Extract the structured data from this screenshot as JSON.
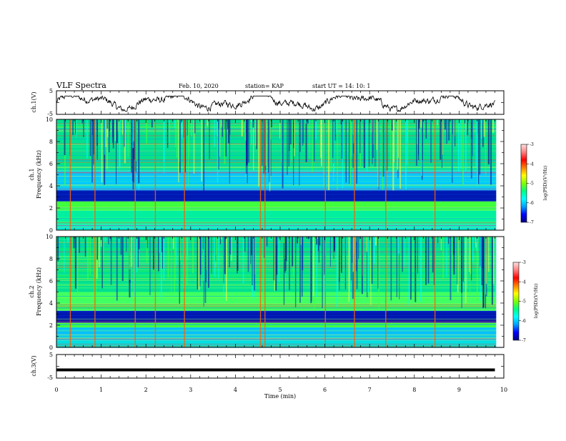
{
  "header": {
    "title": "VLF Spectra",
    "date": "Feb. 10, 2020",
    "station": "station= KAP",
    "start": "start  UT =   14: 10: 1"
  },
  "chart_data": [
    {
      "type": "line",
      "panel": "ch1-waveform",
      "ylabel": "ch.1(V)",
      "ylim": [
        -5,
        5
      ],
      "yticks": [
        "5",
        "-5"
      ],
      "xlim": [
        0,
        10
      ],
      "trace_range_min": [
        0,
        9.8
      ],
      "color": "#000000"
    },
    {
      "type": "heatmap",
      "panel": "ch1-spectrogram",
      "ylabel_top": "ch.1",
      "ylabel": "Frequency (kHz)",
      "ylim": [
        0,
        10
      ],
      "yticks": [
        "0",
        "2",
        "4",
        "6",
        "8",
        "10"
      ],
      "xlim": [
        0,
        10
      ],
      "bands_khz": [
        [
          0,
          0.5,
          "#00e0e0"
        ],
        [
          0.5,
          1.8,
          "#00f0a0"
        ],
        [
          1.8,
          2.6,
          "#40ff40"
        ],
        [
          2.6,
          3.6,
          "#0018b0"
        ],
        [
          3.6,
          5.4,
          "#00c8ff"
        ],
        [
          5.4,
          10,
          "#00e090"
        ]
      ],
      "strong_times_min": [
        0.3,
        0.85,
        1.75,
        2.2,
        2.85,
        4.55,
        4.65,
        6.0,
        6.65,
        7.35,
        8.45
      ]
    },
    {
      "type": "heatmap",
      "panel": "ch2-spectrogram",
      "ylabel_top": "ch.2",
      "ylabel": "Frequency (kHz)",
      "ylim": [
        0,
        10
      ],
      "yticks": [
        "0",
        "2",
        "4",
        "6",
        "8",
        "10"
      ],
      "xlim": [
        0,
        10
      ],
      "bands_khz": [
        [
          0,
          0.6,
          "#00e0e0"
        ],
        [
          0.6,
          1.8,
          "#00c0ff"
        ],
        [
          1.8,
          2.2,
          "#40ff40"
        ],
        [
          2.2,
          3.3,
          "#0018b0"
        ],
        [
          3.3,
          5.0,
          "#40ff60"
        ],
        [
          5.0,
          10,
          "#00e090"
        ]
      ],
      "strong_times_min": [
        0.3,
        0.85,
        1.75,
        2.2,
        2.85,
        4.55,
        4.65,
        6.0,
        6.65,
        7.35,
        8.45
      ]
    },
    {
      "type": "line",
      "panel": "ch3-waveform",
      "ylabel": "ch.3(V)",
      "ylim": [
        -5,
        5
      ],
      "yticks": [
        "5",
        "-5"
      ],
      "xlim": [
        0,
        10
      ],
      "constant_value_v": -1.5,
      "trace_range_min": [
        0,
        9.8
      ],
      "color": "#000000"
    }
  ],
  "xaxis": {
    "label": "Time (min)",
    "ticks": [
      "0",
      "1",
      "2",
      "3",
      "4",
      "5",
      "6",
      "7",
      "8",
      "9",
      "10"
    ]
  },
  "colorbars": [
    {
      "label": "log(PSD)(V²/Hz)",
      "range": [
        -7,
        -3
      ],
      "ticks": [
        "-3",
        "-4",
        "-5",
        "-6",
        "-7"
      ],
      "colors": [
        "#000080",
        "#0000ff",
        "#00a0ff",
        "#00ffff",
        "#00ff80",
        "#80ff00",
        "#ffff00",
        "#ff8000",
        "#ff0000",
        "#ff8080",
        "#ffe0e0"
      ]
    },
    {
      "label": "log(PSD)(V²/Hz)",
      "range": [
        -7,
        -3
      ],
      "ticks": [
        "-3",
        "-4",
        "-5",
        "-6",
        "-7"
      ],
      "colors": [
        "#000080",
        "#0000ff",
        "#00a0ff",
        "#00ffff",
        "#00ff80",
        "#80ff00",
        "#ffff00",
        "#ff8000",
        "#ff0000",
        "#ff8080",
        "#ffe0e0"
      ]
    }
  ]
}
